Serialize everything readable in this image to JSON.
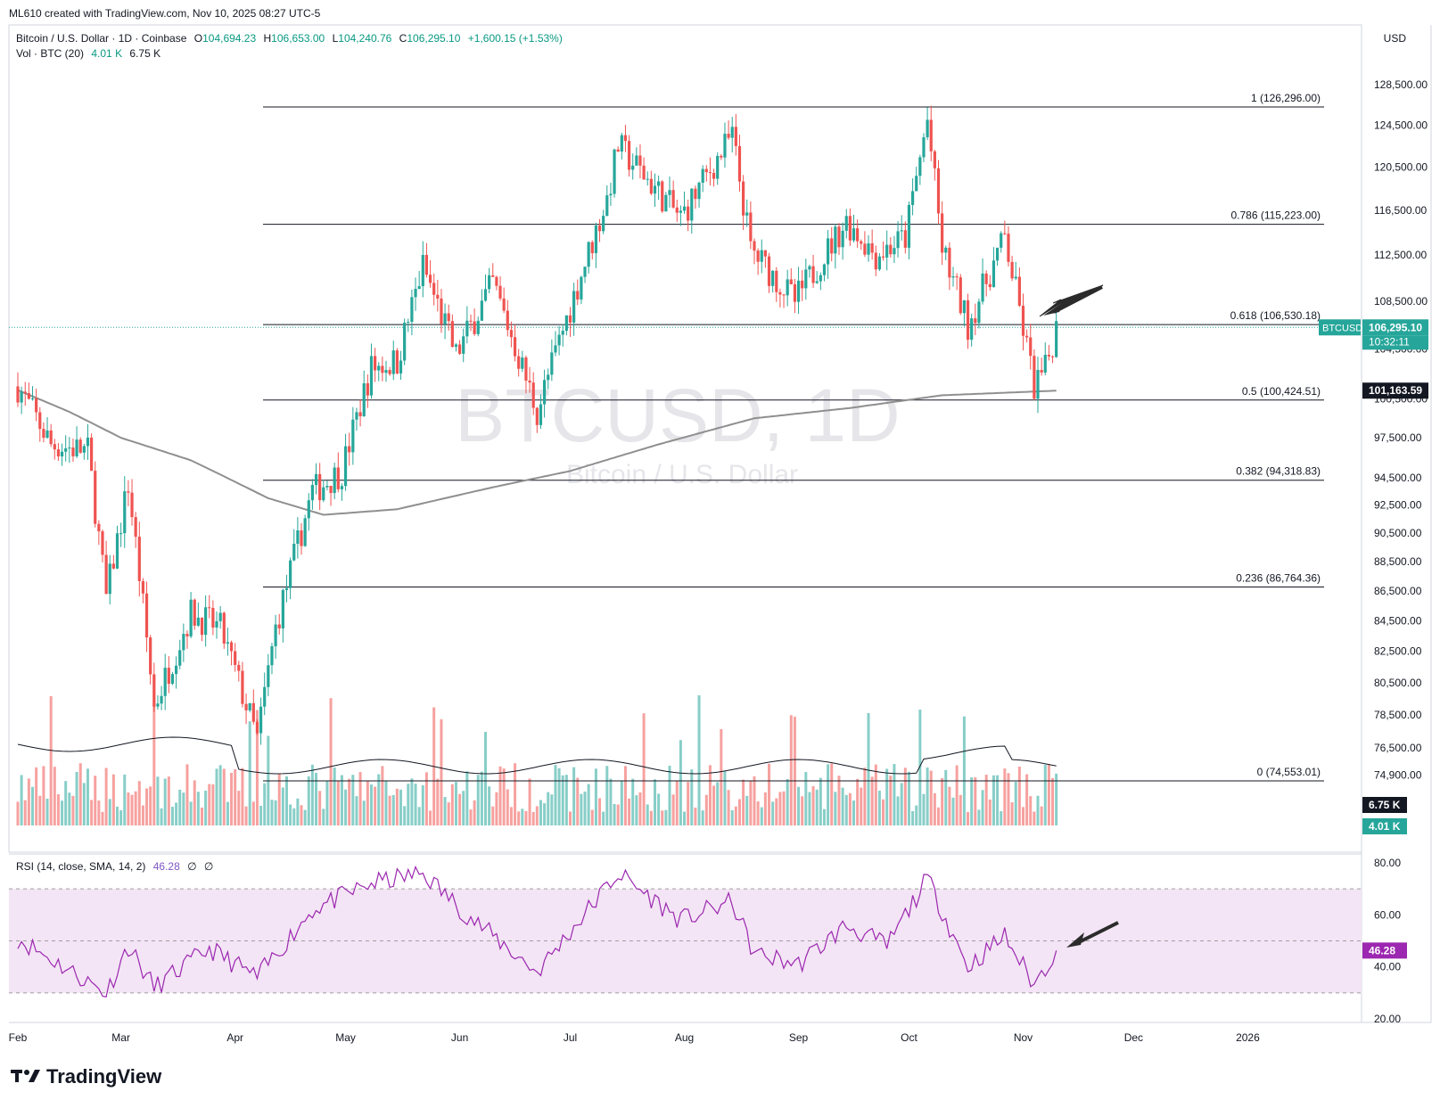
{
  "header": {
    "credit": "ML610 created with TradingView.com, Nov 10, 2025 08:27 UTC-5"
  },
  "legend": {
    "symbol": "Bitcoin / U.S. Dollar · 1D · Coinbase",
    "open_label": "O",
    "open": "104,694.23",
    "high_label": "H",
    "high": "106,653.00",
    "low_label": "L",
    "low": "104,240.76",
    "close_label": "C",
    "close": "106,295.10",
    "change": "+1,600.15 (+1.53%)",
    "vol_label": "Vol · BTC (20)",
    "vol_value": "4.01 K",
    "vol_ma": "6.75 K"
  },
  "rsi_legend": {
    "label": "RSI (14, close, SMA, 14, 2)",
    "value": "46.28",
    "extra1": "∅",
    "extra2": "∅"
  },
  "currency": "USD",
  "watermark": {
    "ticker": "BTCUSD, 1D",
    "name": "Bitcoin / U.S. Dollar"
  },
  "brand": {
    "logo": "TV",
    "name": "TradingView"
  },
  "colors": {
    "up": "#26a69a",
    "down": "#ef5350",
    "ma": "#8f8f8f",
    "rsi_line": "#9c27b0",
    "rsi_band": "#f3e5f5",
    "price_badge": "#26a69a"
  },
  "badges": {
    "last_price": "106,295.10",
    "last_ticker": "BTCUSD",
    "countdown": "10:32:11",
    "ma_value": "101,163.59",
    "vol_ma": "6.75 K",
    "vol_now": "4.01 K",
    "rsi_value": "46.28"
  },
  "chart_data": {
    "type": "candlestick",
    "interval": "1D",
    "price_axis": {
      "ticks": [
        "128,500.00",
        "124,500.00",
        "120,500.00",
        "116,500.00",
        "112,500.00",
        "108,500.00",
        "104,500.00",
        "100,500.00",
        "97,500.00",
        "94,500.00",
        "92,500.00",
        "90,500.00",
        "88,500.00",
        "86,500.00",
        "84,500.00",
        "82,500.00",
        "80,500.00",
        "78,500.00",
        "76,500.00",
        "74,900.00"
      ],
      "scale": "log"
    },
    "rsi_axis": {
      "ticks": [
        "80.00",
        "60.00",
        "40.00",
        "20.00"
      ],
      "bands": [
        30,
        50,
        70
      ]
    },
    "time_axis": [
      "Feb",
      "Mar",
      "Apr",
      "May",
      "Jun",
      "Jul",
      "Aug",
      "Sep",
      "Oct",
      "Nov",
      "Dec",
      "2026"
    ],
    "fib_levels": [
      {
        "label": "1 (126,296.00)",
        "price": 126296.0
      },
      {
        "label": "0.786 (115,223.00)",
        "price": 115223.0
      },
      {
        "label": "0.618 (106,530.18)",
        "price": 106530.18
      },
      {
        "label": "0.5 (100,424.51)",
        "price": 100424.51
      },
      {
        "label": "0.382 (94,318.83)",
        "price": 94318.83
      },
      {
        "label": "0.236 (86,764.36)",
        "price": 86764.36
      },
      {
        "label": "0 (74,553.01)",
        "price": 74553.01
      }
    ],
    "price_path_anchors": [
      [
        "2025-02-01",
        101500
      ],
      [
        "2025-02-10",
        97000
      ],
      [
        "2025-02-20",
        96500
      ],
      [
        "2025-02-25",
        86000
      ],
      [
        "2025-03-03",
        94000
      ],
      [
        "2025-03-10",
        79000
      ],
      [
        "2025-03-20",
        85000
      ],
      [
        "2025-03-28",
        84000
      ],
      [
        "2025-04-07",
        77000
      ],
      [
        "2025-04-12",
        84000
      ],
      [
        "2025-04-22",
        93500
      ],
      [
        "2025-04-30",
        95000
      ],
      [
        "2025-05-08",
        103000
      ],
      [
        "2025-05-15",
        103500
      ],
      [
        "2025-05-22",
        111500
      ],
      [
        "2025-05-31",
        104000
      ],
      [
        "2025-06-10",
        110000
      ],
      [
        "2025-06-22",
        99500
      ],
      [
        "2025-06-30",
        107000
      ],
      [
        "2025-07-11",
        117500
      ],
      [
        "2025-07-14",
        122500
      ],
      [
        "2025-07-31",
        115800
      ],
      [
        "2025-08-14",
        123500
      ],
      [
        "2025-08-19",
        113000
      ],
      [
        "2025-08-31",
        108500
      ],
      [
        "2025-09-14",
        115500
      ],
      [
        "2025-09-22",
        112500
      ],
      [
        "2025-09-30",
        114000
      ],
      [
        "2025-10-06",
        125000
      ],
      [
        "2025-10-10",
        113000
      ],
      [
        "2025-10-17",
        106500
      ],
      [
        "2025-10-27",
        114000
      ],
      [
        "2025-11-04",
        101500
      ],
      [
        "2025-11-07",
        102800
      ],
      [
        "2025-11-10",
        106295
      ]
    ],
    "ma_series_anchors": [
      [
        "2025-02-01",
        101200
      ],
      [
        "2025-02-15",
        99500
      ],
      [
        "2025-03-01",
        97500
      ],
      [
        "2025-03-20",
        95800
      ],
      [
        "2025-04-10",
        93000
      ],
      [
        "2025-04-25",
        91800
      ],
      [
        "2025-05-15",
        92200
      ],
      [
        "2025-06-10",
        93800
      ],
      [
        "2025-07-01",
        95000
      ],
      [
        "2025-07-25",
        97000
      ],
      [
        "2025-08-20",
        99000
      ],
      [
        "2025-09-15",
        99800
      ],
      [
        "2025-10-10",
        100800
      ],
      [
        "2025-11-10",
        101163.59
      ]
    ],
    "rsi_anchors": [
      [
        "2025-02-01",
        51
      ],
      [
        "2025-02-10",
        43
      ],
      [
        "2025-02-25",
        30
      ],
      [
        "2025-03-03",
        48
      ],
      [
        "2025-03-10",
        32
      ],
      [
        "2025-03-25",
        47
      ],
      [
        "2025-04-07",
        36
      ],
      [
        "2025-04-22",
        62
      ],
      [
        "2025-05-08",
        72
      ],
      [
        "2025-05-22",
        76
      ],
      [
        "2025-06-03",
        60
      ],
      [
        "2025-06-22",
        38
      ],
      [
        "2025-07-14",
        76
      ],
      [
        "2025-07-31",
        58
      ],
      [
        "2025-08-14",
        65
      ],
      [
        "2025-08-20",
        45
      ],
      [
        "2025-09-01",
        41
      ],
      [
        "2025-09-14",
        56
      ],
      [
        "2025-09-25",
        48
      ],
      [
        "2025-10-06",
        74
      ],
      [
        "2025-10-17",
        40
      ],
      [
        "2025-10-27",
        52
      ],
      [
        "2025-11-04",
        33
      ],
      [
        "2025-11-10",
        46.28
      ]
    ]
  }
}
